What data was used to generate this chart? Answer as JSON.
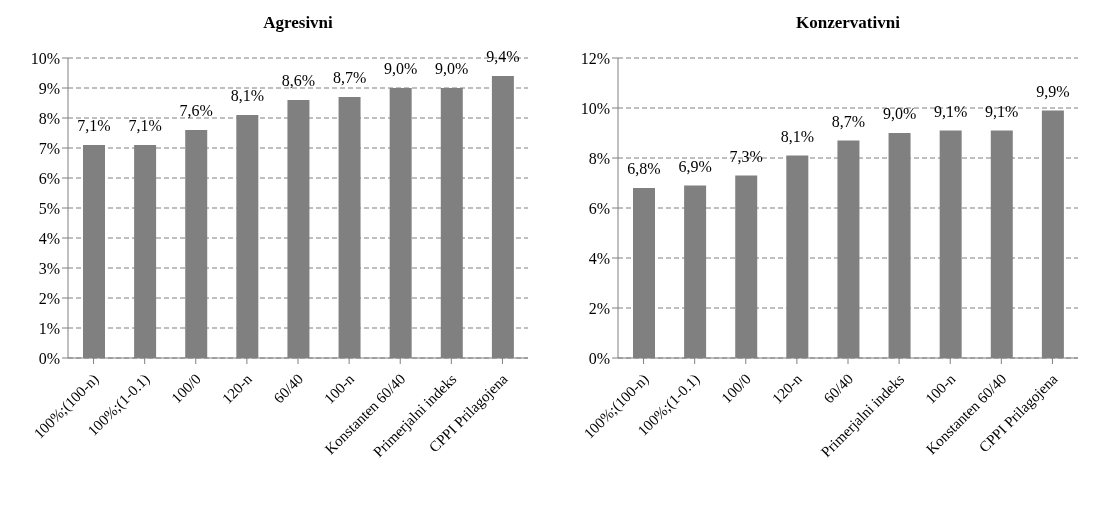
{
  "chart_data": [
    {
      "type": "bar",
      "title": "Agresivni",
      "categories": [
        "100%;(100-n)",
        "100%;(1-0.1)",
        "100/0",
        "120-n",
        "60/40",
        "100-n",
        "Konstanten 60/40",
        "Primerjalni indeks",
        "CPPI Prilagojena"
      ],
      "values": [
        7.1,
        7.1,
        7.6,
        8.1,
        8.6,
        8.7,
        9.0,
        9.0,
        9.4
      ],
      "value_labels": [
        "7,1%",
        "7,1%",
        "7,6%",
        "8,1%",
        "8,6%",
        "8,7%",
        "9,0%",
        "9,0%",
        "9,4%"
      ],
      "color": "#808080",
      "ylim": [
        0,
        10
      ],
      "yticks": [
        {
          "value": 0,
          "label": "0%"
        },
        {
          "value": 1,
          "label": "1%"
        },
        {
          "value": 2,
          "label": "2%"
        },
        {
          "value": 3,
          "label": "3%"
        },
        {
          "value": 4,
          "label": "4%"
        },
        {
          "value": 5,
          "label": "5%"
        },
        {
          "value": 6,
          "label": "6%"
        },
        {
          "value": 7,
          "label": "7%"
        },
        {
          "value": 8,
          "label": "8%"
        },
        {
          "value": 9,
          "label": "9%"
        },
        {
          "value": 10,
          "label": "10%"
        }
      ],
      "grid": "y"
    },
    {
      "type": "bar",
      "title": "Konzervativni",
      "categories": [
        "100%;(100-n)",
        "100%;(1-0.1)",
        "100/0",
        "120-n",
        "60/40",
        "Primerjalni indeks",
        "100-n",
        "Konstanten 60/40",
        "CPPI Prilagojena"
      ],
      "values": [
        6.8,
        6.9,
        7.3,
        8.1,
        8.7,
        9.0,
        9.1,
        9.1,
        9.9
      ],
      "value_labels": [
        "6,8%",
        "6,9%",
        "7,3%",
        "8,1%",
        "8,7%",
        "9,0%",
        "9,1%",
        "9,1%",
        "9,9%"
      ],
      "color": "#808080",
      "ylim": [
        0,
        12
      ],
      "yticks": [
        {
          "value": 0,
          "label": "0%"
        },
        {
          "value": 2,
          "label": "2%"
        },
        {
          "value": 4,
          "label": "4%"
        },
        {
          "value": 6,
          "label": "6%"
        },
        {
          "value": 8,
          "label": "8%"
        },
        {
          "value": 10,
          "label": "10%"
        },
        {
          "value": 12,
          "label": "12%"
        }
      ],
      "grid": "y"
    }
  ]
}
